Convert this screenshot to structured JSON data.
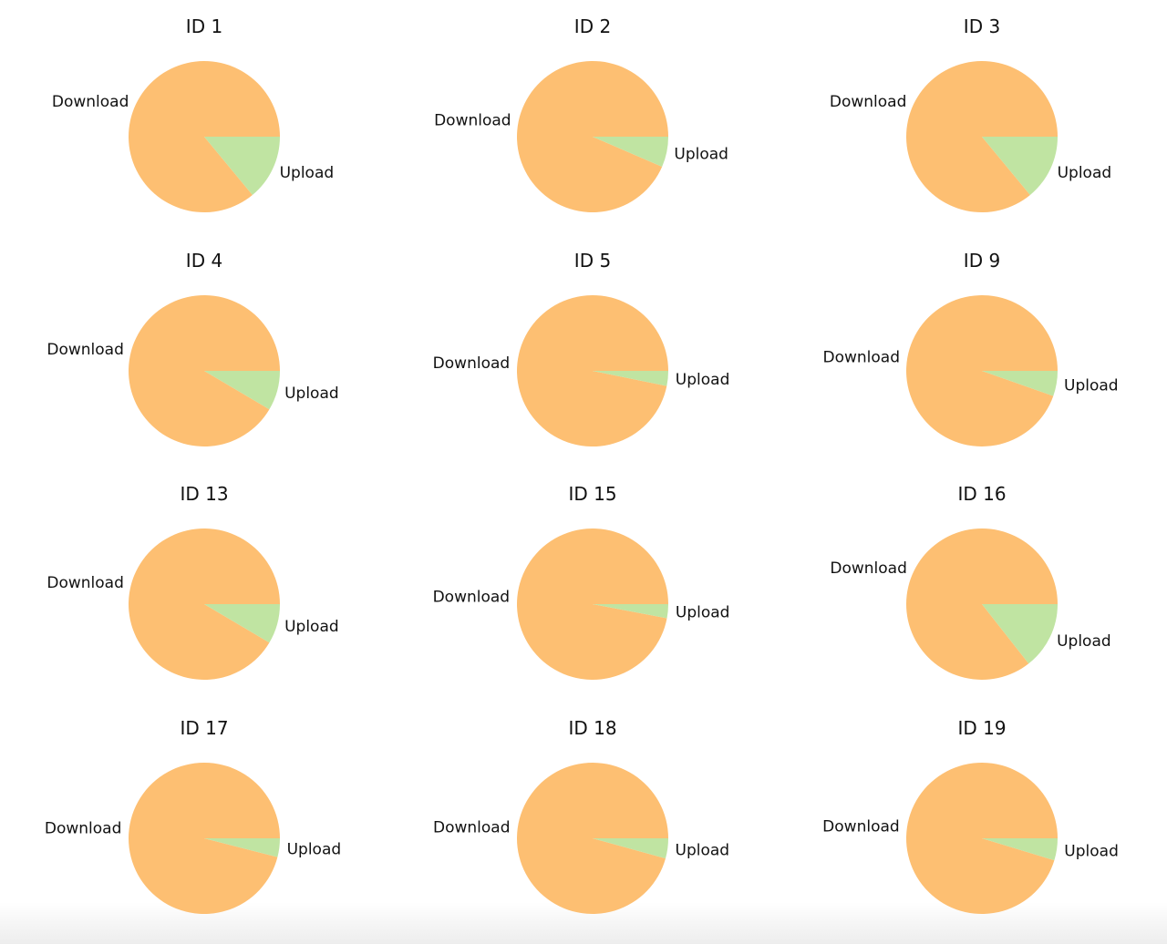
{
  "chart_data": [
    {
      "type": "pie",
      "title": "ID 1",
      "labels": [
        "Download",
        "Upload"
      ],
      "values": [
        86.0,
        14.0
      ],
      "colors": [
        "#fdbf72",
        "#c0e4a2"
      ]
    },
    {
      "type": "pie",
      "title": "ID 2",
      "labels": [
        "Download",
        "Upload"
      ],
      "values": [
        93.5,
        6.5
      ],
      "colors": [
        "#fdbf72",
        "#c0e4a2"
      ]
    },
    {
      "type": "pie",
      "title": "ID 3",
      "labels": [
        "Download",
        "Upload"
      ],
      "values": [
        86.0,
        14.0
      ],
      "colors": [
        "#fdbf72",
        "#c0e4a2"
      ]
    },
    {
      "type": "pie",
      "title": "ID 4",
      "labels": [
        "Download",
        "Upload"
      ],
      "values": [
        91.5,
        8.5
      ],
      "colors": [
        "#fdbf72",
        "#c0e4a2"
      ]
    },
    {
      "type": "pie",
      "title": "ID 5",
      "labels": [
        "Download",
        "Upload"
      ],
      "values": [
        96.8,
        3.2
      ],
      "colors": [
        "#fdbf72",
        "#c0e4a2"
      ]
    },
    {
      "type": "pie",
      "title": "ID 9",
      "labels": [
        "Download",
        "Upload"
      ],
      "values": [
        94.6,
        5.4
      ],
      "colors": [
        "#fdbf72",
        "#c0e4a2"
      ]
    },
    {
      "type": "pie",
      "title": "ID 13",
      "labels": [
        "Download",
        "Upload"
      ],
      "values": [
        91.5,
        8.5
      ],
      "colors": [
        "#fdbf72",
        "#c0e4a2"
      ]
    },
    {
      "type": "pie",
      "title": "ID 15",
      "labels": [
        "Download",
        "Upload"
      ],
      "values": [
        97.0,
        3.0
      ],
      "colors": [
        "#fdbf72",
        "#c0e4a2"
      ]
    },
    {
      "type": "pie",
      "title": "ID 16",
      "labels": [
        "Download",
        "Upload"
      ],
      "values": [
        85.6,
        14.4
      ],
      "colors": [
        "#fdbf72",
        "#c0e4a2"
      ]
    },
    {
      "type": "pie",
      "title": "ID 17",
      "labels": [
        "Download",
        "Upload"
      ],
      "values": [
        96.0,
        4.0
      ],
      "colors": [
        "#fdbf72",
        "#c0e4a2"
      ]
    },
    {
      "type": "pie",
      "title": "ID 18",
      "labels": [
        "Download",
        "Upload"
      ],
      "values": [
        95.7,
        4.3
      ],
      "colors": [
        "#fdbf72",
        "#c0e4a2"
      ]
    },
    {
      "type": "pie",
      "title": "ID 19",
      "labels": [
        "Download",
        "Upload"
      ],
      "values": [
        95.3,
        4.7
      ],
      "colors": [
        "#fdbf72",
        "#c0e4a2"
      ]
    }
  ]
}
